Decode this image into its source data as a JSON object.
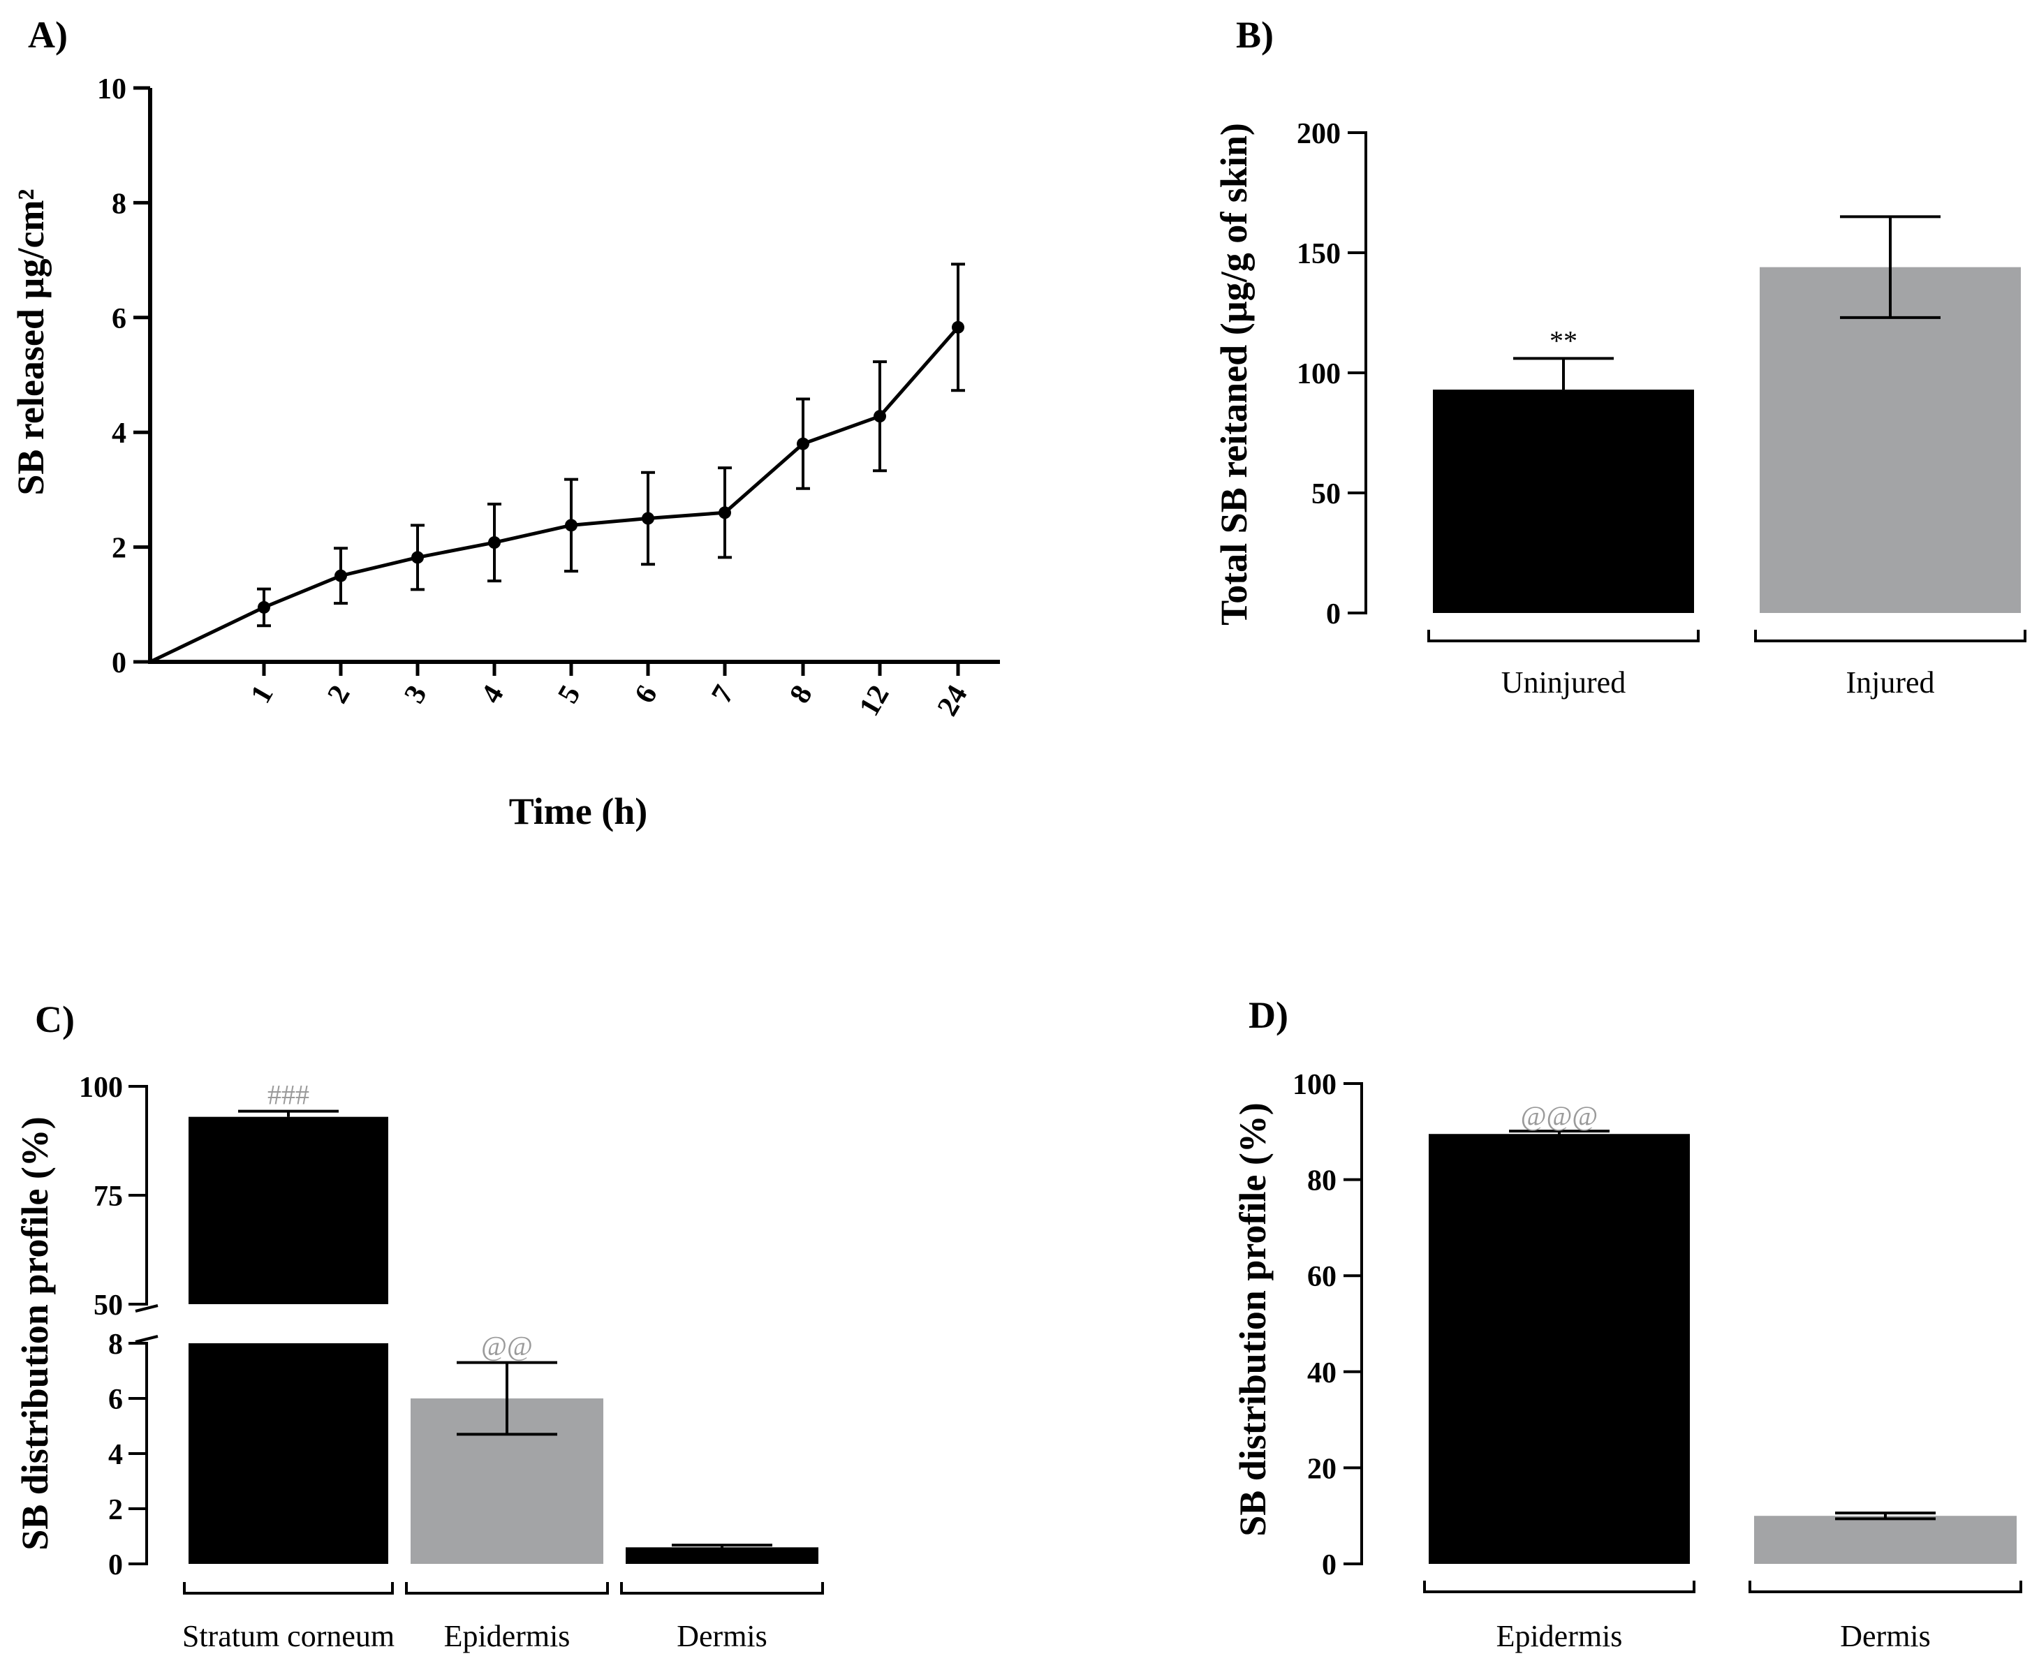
{
  "colors": {
    "black": "#000000",
    "gray": "#a3a4a6",
    "annotation_gray": "#9a9a9a"
  },
  "chart_data": [
    {
      "id": "A",
      "type": "line",
      "panel_label": "A)",
      "title": "",
      "xlabel": "Time (h)",
      "ylabel": "SB released µg/cm²",
      "ylim": [
        0,
        10
      ],
      "yticks": [
        "0",
        "2",
        "4",
        "6",
        "8",
        "10"
      ],
      "categories": [
        "1",
        "2",
        "3",
        "4",
        "5",
        "6",
        "7",
        "8",
        "12",
        "24"
      ],
      "values": [
        0.95,
        1.5,
        1.82,
        2.08,
        2.38,
        2.5,
        2.6,
        3.8,
        4.28,
        5.83
      ],
      "errors": [
        0.32,
        0.48,
        0.56,
        0.67,
        0.8,
        0.8,
        0.78,
        0.78,
        0.95,
        1.1
      ],
      "origin": [
        0,
        0
      ]
    },
    {
      "id": "B",
      "type": "bar",
      "panel_label": "B)",
      "ylabel": "Total SB reitaned (µg/g of skin)",
      "ylim": [
        0,
        200
      ],
      "yticks": [
        "0",
        "50",
        "100",
        "150",
        "200"
      ],
      "categories": [
        "Uninjured",
        "Injured"
      ],
      "values": [
        93,
        144
      ],
      "errors": [
        13,
        21
      ],
      "bar_colors": [
        "black",
        "gray"
      ],
      "annotations": [
        "**",
        ""
      ]
    },
    {
      "id": "C",
      "type": "bar",
      "panel_label": "C)",
      "ylabel": "SB distribution profile (%)",
      "axis_break": true,
      "lower_ylim": [
        0,
        8
      ],
      "upper_ylim": [
        50,
        100
      ],
      "lower_yticks": [
        "0",
        "2",
        "4",
        "6",
        "8"
      ],
      "upper_yticks": [
        "50",
        "75",
        "100"
      ],
      "categories": [
        "Stratum corneum",
        "Epidermis",
        "Dermis"
      ],
      "values": [
        93,
        6,
        0.6
      ],
      "errors": [
        1.3,
        1.3,
        0.08
      ],
      "bar_colors": [
        "black",
        "gray",
        "black"
      ],
      "annotations": [
        "###",
        "@@",
        ""
      ]
    },
    {
      "id": "D",
      "type": "bar",
      "panel_label": "D)",
      "ylabel": "SB distribution profile (%)",
      "ylim": [
        0,
        100
      ],
      "yticks": [
        "0",
        "20",
        "40",
        "60",
        "80",
        "100"
      ],
      "categories": [
        "Epidermis",
        "Dermis"
      ],
      "values": [
        89.5,
        10
      ],
      "errors": [
        0.6,
        0.6
      ],
      "bar_colors": [
        "black",
        "gray"
      ],
      "annotations": [
        "@@@",
        ""
      ]
    }
  ]
}
